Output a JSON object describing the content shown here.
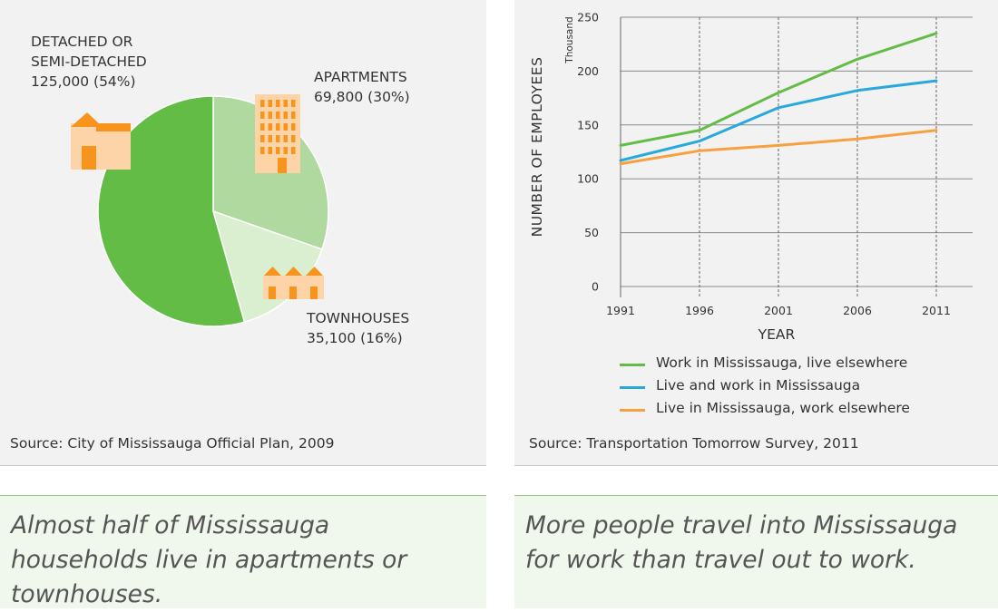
{
  "pie_panel": {
    "source": "Source: City of Mississauga Official Plan, 2009",
    "caption": "Almost half of Mississauga households live in apartments or townhouses.",
    "labels": [
      {
        "lines": [
          "DETACHED OR",
          "SEMI-DETACHED",
          "125,000 (54%)"
        ]
      },
      {
        "lines": [
          "APARTMENTS",
          "69,800 (30%)"
        ]
      },
      {
        "lines": [
          "TOWNHOUSES",
          "35,100 (16%)"
        ]
      }
    ],
    "icons": [
      "detached-house-icon",
      "apartment-building-icon",
      "townhouses-icon"
    ],
    "icon_color": "#fcd4a8",
    "icon_accent": "#f7941d"
  },
  "line_panel": {
    "source": "Source: Transportation Tomorrow Survey, 2011",
    "caption": "More people travel into Mississauga for work than travel out to work."
  },
  "chart_data": [
    {
      "type": "pie",
      "title": "",
      "slices": [
        {
          "label": "DETACHED OR SEMI-DETACHED",
          "value": 125000,
          "percent": 54,
          "color": "#63bc46"
        },
        {
          "label": "APARTMENTS",
          "value": 69800,
          "percent": 30,
          "color": "#b0d9a0"
        },
        {
          "label": "TOWNHOUSES",
          "value": 35100,
          "percent": 16,
          "color": "#d9efcf"
        }
      ]
    },
    {
      "type": "line",
      "title": "",
      "xlabel": "YEAR",
      "ylabel": "NUMBER OF EMPLOYEES",
      "yunit": "Thousand",
      "x": [
        1991,
        1996,
        2001,
        2006,
        2011
      ],
      "x_ticks": [
        "1991",
        "1996",
        "2001",
        "2006",
        "2011"
      ],
      "y_ticks": [
        0,
        50,
        100,
        150,
        200,
        250
      ],
      "ylim": [
        0,
        250
      ],
      "grid": true,
      "legend_position": "bottom",
      "series": [
        {
          "name": "Work in Mississauga, live elsewhere",
          "color": "#63bc46",
          "values": [
            131,
            145,
            180,
            211,
            235
          ]
        },
        {
          "name": "Live and work in Mississauga",
          "color": "#29a8dc",
          "values": [
            117,
            135,
            166,
            182,
            191
          ]
        },
        {
          "name": "Live in Mississauga, work elsewhere",
          "color": "#f7a040",
          "values": [
            114,
            126,
            131,
            137,
            145
          ]
        }
      ]
    }
  ]
}
